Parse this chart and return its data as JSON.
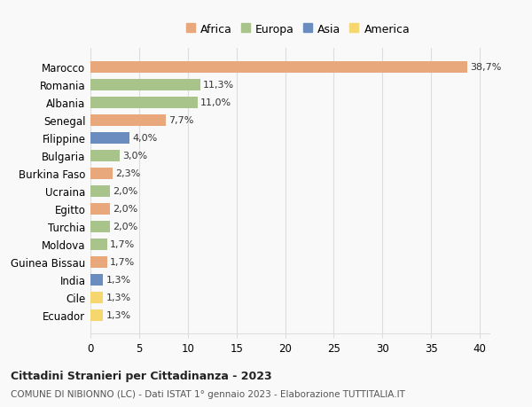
{
  "countries": [
    "Ecuador",
    "Cile",
    "India",
    "Guinea Bissau",
    "Moldova",
    "Turchia",
    "Egitto",
    "Ucraina",
    "Burkina Faso",
    "Bulgaria",
    "Filippine",
    "Senegal",
    "Albania",
    "Romania",
    "Marocco"
  ],
  "values": [
    1.3,
    1.3,
    1.3,
    1.7,
    1.7,
    2.0,
    2.0,
    2.0,
    2.3,
    3.0,
    4.0,
    7.7,
    11.0,
    11.3,
    38.7
  ],
  "labels": [
    "1,3%",
    "1,3%",
    "1,3%",
    "1,7%",
    "1,7%",
    "2,0%",
    "2,0%",
    "2,0%",
    "2,3%",
    "3,0%",
    "4,0%",
    "7,7%",
    "11,0%",
    "11,3%",
    "38,7%"
  ],
  "continents": [
    "America",
    "America",
    "Asia",
    "Africa",
    "Europa",
    "Europa",
    "Africa",
    "Europa",
    "Africa",
    "Europa",
    "Asia",
    "Africa",
    "Europa",
    "Europa",
    "Africa"
  ],
  "colors": {
    "Africa": "#E8A87C",
    "Europa": "#A8C48A",
    "Asia": "#6B8CBF",
    "America": "#F5D76E"
  },
  "title": "Cittadini Stranieri per Cittadinanza - 2023",
  "subtitle": "COMUNE DI NIBIONNO (LC) - Dati ISTAT 1° gennaio 2023 - Elaborazione TUTTITALIA.IT",
  "xlim": [
    0,
    41
  ],
  "xticks": [
    0,
    5,
    10,
    15,
    20,
    25,
    30,
    35,
    40
  ],
  "background_color": "#f9f9f9",
  "grid_color": "#dddddd",
  "legend_order": [
    "Africa",
    "Europa",
    "Asia",
    "America"
  ]
}
